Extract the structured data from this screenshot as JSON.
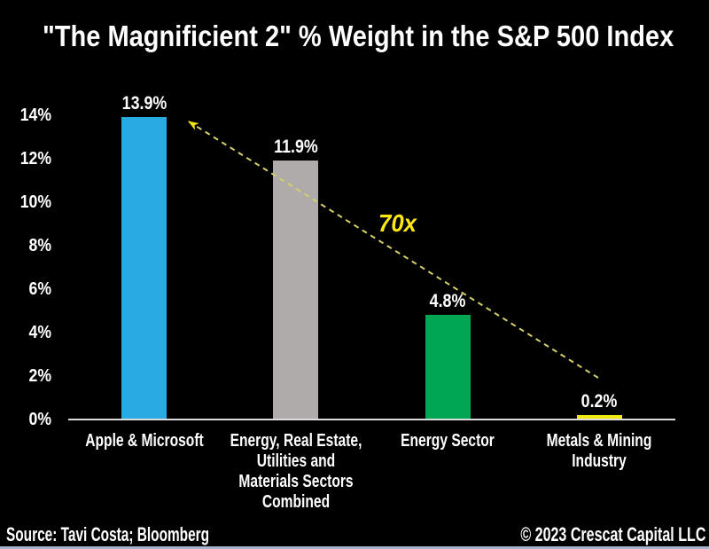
{
  "title": "\"The Magnificient 2\" % Weight in the S&P 500 Index",
  "chart_data": {
    "type": "bar",
    "title": "\"The Magnificient 2\" % Weight in the S&P 500 Index",
    "categories": [
      "Apple & Microsoft",
      "Energy, Real Estate, Utilities and Materials Sectors Combined",
      "Energy Sector",
      "Metals & Mining Industry"
    ],
    "categories_lines": [
      [
        "Apple & Microsoft"
      ],
      [
        "Energy, Real Estate,",
        "Utilities and",
        "Materials Sectors",
        "Combined"
      ],
      [
        "Energy Sector"
      ],
      [
        "Metals & Mining",
        "Industry"
      ]
    ],
    "values": [
      13.9,
      11.9,
      4.8,
      0.2
    ],
    "value_labels": [
      "13.9%",
      "11.9%",
      "4.8%",
      "0.2%"
    ],
    "bar_colors": [
      "#29ABE2",
      "#AEABAA",
      "#00A651",
      "#F2E713"
    ],
    "xlabel": "",
    "ylabel": "",
    "ylim": [
      0,
      14
    ],
    "ytick_labels": [
      "0%",
      "2%",
      "4%",
      "6%",
      "8%",
      "10%",
      "12%",
      "14%"
    ],
    "grid": false,
    "legend": false,
    "background_color": "#000000",
    "text_color": "#FFFFFF",
    "annotation": {
      "label": "70x",
      "label_color": "#FFE712",
      "arrow": "yellow dashed arrow from Metals & Mining bar up-left to Apple & Microsoft bar",
      "arrow_color": "#D5D06A",
      "arrowhead_color": "#F2E713"
    }
  },
  "footer": {
    "source": "Source: Tavi Costa; Bloomberg",
    "copyright": "© 2023 Crescat Capital LLC"
  }
}
